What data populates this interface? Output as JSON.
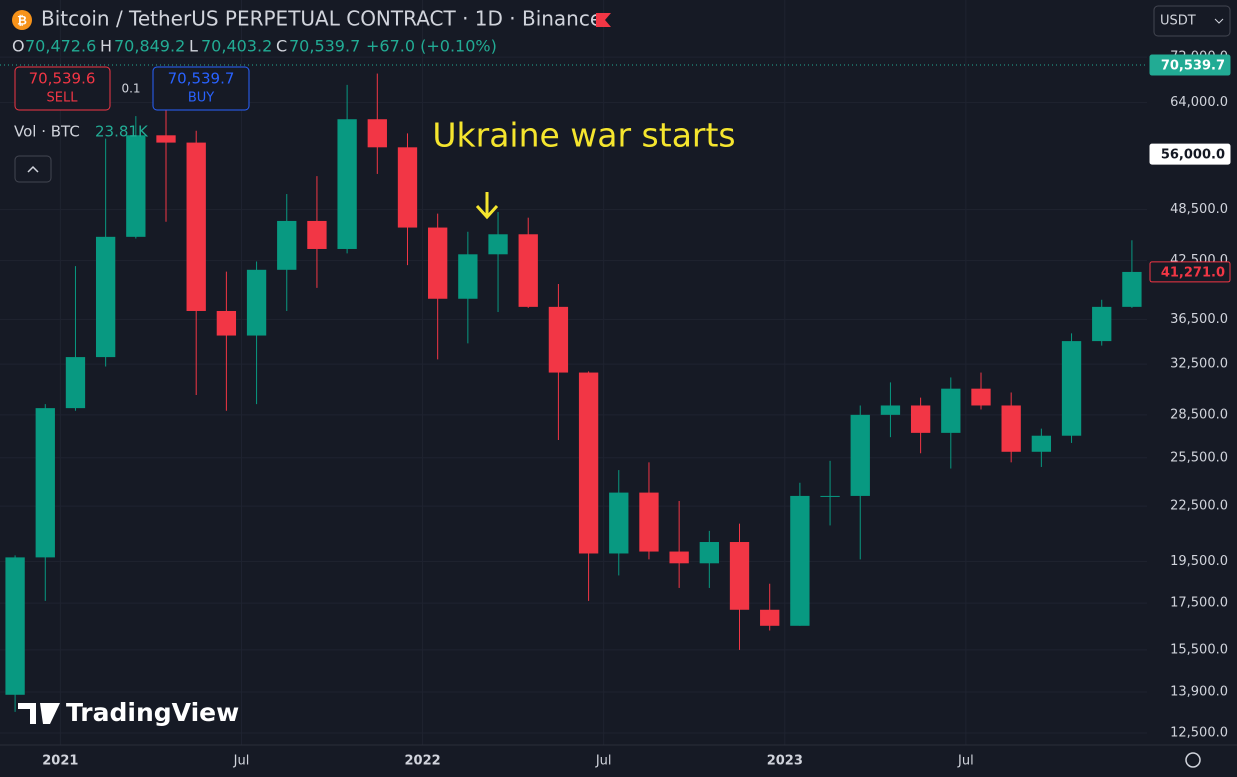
{
  "chart_data": {
    "type": "candlestick",
    "title": "Bitcoin / TetherUS PERPETUAL CONTRACT · 1D · Binance",
    "currency": "USDT",
    "ohlc_legend": {
      "o_label": "O",
      "o": "70,472.6",
      "h_label": "H",
      "h": "70,849.2",
      "l_label": "L",
      "l": "70,403.2",
      "c_label": "C",
      "c": "70,539.7",
      "change": "+67.0 (+0.10%)"
    },
    "trade": {
      "sell_price": "70,539.6",
      "sell": "SELL",
      "qty": "0.1",
      "buy_price": "70,539.7",
      "buy": "BUY"
    },
    "volume_legend": {
      "label": "Vol · BTC",
      "value": "23.81K"
    },
    "annotation": "Ukraine war starts",
    "brand": "TradingView",
    "up_color": "#089981",
    "down_color": "#f23645",
    "log_scale": true,
    "grid": true,
    "x": [
      "2020-11",
      "2020-12",
      "2021-01",
      "2021-02",
      "2021-03",
      "2021-04",
      "2021-05",
      "2021-06",
      "2021-07",
      "2021-08",
      "2021-09",
      "2021-10",
      "2021-11",
      "2021-12",
      "2022-01",
      "2022-02",
      "2022-03",
      "2022-04",
      "2022-05",
      "2022-06",
      "2022-07",
      "2022-08",
      "2022-09",
      "2022-10",
      "2022-11",
      "2022-12",
      "2023-01",
      "2023-02",
      "2023-03",
      "2023-04",
      "2023-05",
      "2023-06",
      "2023-07",
      "2023-08",
      "2023-09",
      "2023-10",
      "2023-11",
      "2023-12"
    ],
    "open": [
      13800,
      19700,
      29000,
      33100,
      45200,
      58800,
      57700,
      37300,
      35000,
      41500,
      47100,
      43800,
      61300,
      57000,
      46300,
      38500,
      43200,
      45500,
      37700,
      31800,
      19900,
      23300,
      20000,
      19400,
      20500,
      17200,
      16500,
      23100,
      23100,
      28500,
      29200,
      27200,
      30500,
      29200,
      25900,
      27000,
      34500,
      37700
    ],
    "high": [
      19800,
      29300,
      41900,
      58300,
      61800,
      64800,
      59500,
      41300,
      42400,
      50500,
      52900,
      67000,
      69000,
      59100,
      48000,
      45800,
      48200,
      47500,
      40000,
      31900,
      24700,
      25200,
      22800,
      21100,
      21500,
      18400,
      23900,
      25300,
      29200,
      31000,
      29800,
      31400,
      31800,
      30200,
      27500,
      35200,
      38400,
      44800
    ],
    "low": [
      13200,
      17600,
      28800,
      32300,
      45000,
      47000,
      30000,
      28800,
      29300,
      37300,
      39600,
      43300,
      53200,
      42000,
      32900,
      34300,
      37200,
      37600,
      26700,
      17600,
      18800,
      19600,
      18200,
      18200,
      15500,
      16300,
      16500,
      21400,
      19600,
      26900,
      25800,
      24800,
      28900,
      25200,
      24900,
      26500,
      34100,
      37600
    ],
    "close": [
      19700,
      29000,
      33100,
      45200,
      58800,
      57700,
      37300,
      35000,
      41500,
      47100,
      43800,
      61300,
      57000,
      46300,
      38500,
      43200,
      45500,
      37700,
      31800,
      19900,
      23300,
      20000,
      19400,
      20500,
      17200,
      16500,
      23100,
      23100,
      28500,
      29200,
      27200,
      30500,
      29200,
      25900,
      27000,
      34500,
      37700,
      41271
    ],
    "xlim": [
      "2020-11",
      "2023-12"
    ],
    "xticks": [
      {
        "value": "2021-01",
        "label": "2021"
      },
      {
        "value": "2021-07",
        "label": "Jul"
      },
      {
        "value": "2022-01",
        "label": "2022"
      },
      {
        "value": "2022-07",
        "label": "Jul"
      },
      {
        "value": "2023-01",
        "label": "2023"
      },
      {
        "value": "2023-07",
        "label": "Jul"
      }
    ],
    "ylim": [
      11960,
      74300
    ],
    "yticks": [
      {
        "value": 12500,
        "label": "12,500.0"
      },
      {
        "value": 13900,
        "label": "13,900.0"
      },
      {
        "value": 15500,
        "label": "15,500.0"
      },
      {
        "value": 17500,
        "label": "17,500.0"
      },
      {
        "value": 19500,
        "label": "19,500.0"
      },
      {
        "value": 22500,
        "label": "22,500.0"
      },
      {
        "value": 25500,
        "label": "25,500.0"
      },
      {
        "value": 28500,
        "label": "28,500.0"
      },
      {
        "value": 32500,
        "label": "32,500.0"
      },
      {
        "value": 36500,
        "label": "36,500.0"
      },
      {
        "value": 42500,
        "label": "42,500.0"
      },
      {
        "value": 48500,
        "label": "48,500.0"
      },
      {
        "value": 64000,
        "label": "64,000.0"
      },
      {
        "value": 72000,
        "label": "72,000.0"
      }
    ],
    "price_labels": [
      {
        "value": 70539.7,
        "label": "70,539.7",
        "color": "#22ab94"
      },
      {
        "value": 56000,
        "label": "56,000.0",
        "color": "#ffffff"
      },
      {
        "value": 41271,
        "label": "41,271.0",
        "color": "#f23645"
      }
    ]
  }
}
